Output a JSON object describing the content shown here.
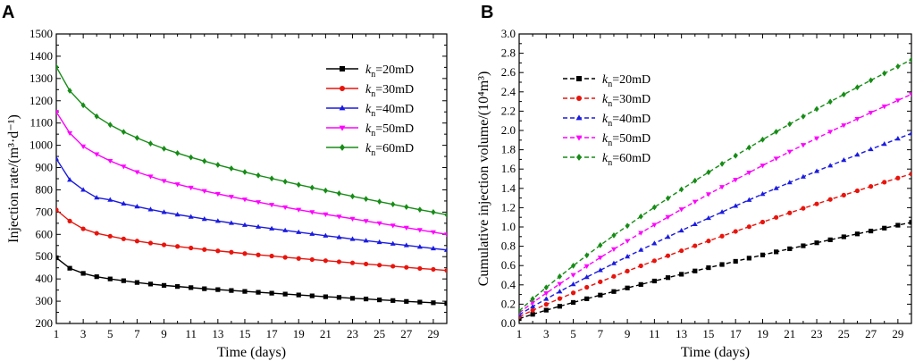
{
  "chart_data": [
    {
      "panel": "A",
      "type": "line",
      "x": [
        1,
        2,
        3,
        4,
        5,
        6,
        7,
        8,
        9,
        10,
        11,
        12,
        13,
        14,
        15,
        16,
        17,
        18,
        19,
        20,
        21,
        22,
        23,
        24,
        25,
        26,
        27,
        28,
        29,
        30
      ],
      "xlabel": "Time (days)",
      "ylabel": "Injection rate/(m³·d⁻¹)",
      "xlim": [
        1,
        30
      ],
      "ylim": [
        200,
        1500
      ],
      "xticks": [
        1,
        3,
        5,
        7,
        9,
        11,
        13,
        15,
        17,
        19,
        21,
        23,
        25,
        27,
        29
      ],
      "yticks": [
        200,
        300,
        400,
        500,
        600,
        700,
        800,
        900,
        1000,
        1100,
        1200,
        1300,
        1400,
        1500
      ],
      "legend_position": "top-right",
      "series": [
        {
          "name": "k",
          "sub": "n",
          "suffix": "=20mD",
          "color": "#000000",
          "marker": "square",
          "dashed": false,
          "values": [
            495,
            448,
            425,
            410,
            400,
            392,
            384,
            377,
            371,
            366,
            361,
            356,
            352,
            348,
            344,
            340,
            336,
            332,
            328,
            324,
            320,
            317,
            313,
            310,
            306,
            303,
            299,
            296,
            293,
            290
          ]
        },
        {
          "name": "k",
          "sub": "n",
          "suffix": "=30mD",
          "color": "#e8140c",
          "marker": "circle",
          "dashed": false,
          "values": [
            710,
            660,
            625,
            605,
            592,
            580,
            570,
            561,
            553,
            546,
            539,
            532,
            526,
            520,
            514,
            508,
            503,
            497,
            492,
            487,
            482,
            477,
            472,
            467,
            462,
            457,
            452,
            447,
            443,
            438
          ]
        },
        {
          "name": "k",
          "sub": "n",
          "suffix": "=40mD",
          "color": "#1b1be0",
          "marker": "triangle-up",
          "dashed": false,
          "values": [
            940,
            845,
            800,
            765,
            755,
            738,
            725,
            712,
            700,
            689,
            679,
            669,
            660,
            651,
            642,
            634,
            626,
            618,
            610,
            602,
            594,
            587,
            579,
            572,
            565,
            558,
            551,
            544,
            537,
            530
          ]
        },
        {
          "name": "k",
          "sub": "n",
          "suffix": "=50mD",
          "color": "#ff00ff",
          "marker": "triangle-down",
          "dashed": false,
          "values": [
            1150,
            1055,
            995,
            960,
            930,
            905,
            880,
            860,
            840,
            825,
            810,
            795,
            782,
            769,
            757,
            745,
            733,
            722,
            711,
            700,
            690,
            680,
            670,
            660,
            650,
            640,
            630,
            620,
            610,
            600
          ]
        },
        {
          "name": "k",
          "sub": "n",
          "suffix": "=60mD",
          "color": "#168c16",
          "marker": "diamond",
          "dashed": false,
          "values": [
            1352,
            1245,
            1180,
            1130,
            1092,
            1060,
            1033,
            1008,
            985,
            965,
            946,
            929,
            912,
            896,
            880,
            865,
            851,
            837,
            823,
            810,
            797,
            784,
            771,
            759,
            747,
            735,
            723,
            711,
            700,
            688
          ]
        }
      ]
    },
    {
      "panel": "B",
      "type": "line",
      "x": [
        1,
        2,
        3,
        4,
        5,
        6,
        7,
        8,
        9,
        10,
        11,
        12,
        13,
        14,
        15,
        16,
        17,
        18,
        19,
        20,
        21,
        22,
        23,
        24,
        25,
        26,
        27,
        28,
        29,
        30
      ],
      "xlabel": "Time (days)",
      "ylabel": "Cumulative injection volume/(10⁴m³)",
      "xlim": [
        1,
        30
      ],
      "ylim": [
        0.0,
        3.0
      ],
      "xticks": [
        1,
        3,
        5,
        7,
        9,
        11,
        13,
        15,
        17,
        19,
        21,
        23,
        25,
        27,
        29
      ],
      "yticks": [
        0.0,
        0.2,
        0.4,
        0.6,
        0.8,
        1.0,
        1.2,
        1.4,
        1.6,
        1.8,
        2.0,
        2.2,
        2.4,
        2.6,
        2.8,
        3.0
      ],
      "legend_position": "top-left",
      "series": [
        {
          "name": "k",
          "sub": "n",
          "suffix": "=20mD",
          "color": "#000000",
          "marker": "square",
          "dashed": true,
          "values": [
            0.05,
            0.095,
            0.138,
            0.178,
            0.218,
            0.256,
            0.294,
            0.331,
            0.368,
            0.404,
            0.44,
            0.475,
            0.51,
            0.544,
            0.578,
            0.611,
            0.644,
            0.677,
            0.71,
            0.742,
            0.774,
            0.805,
            0.836,
            0.867,
            0.898,
            0.928,
            0.958,
            0.988,
            1.018,
            1.048
          ]
        },
        {
          "name": "k",
          "sub": "n",
          "suffix": "=30mD",
          "color": "#e8140c",
          "marker": "circle",
          "dashed": true,
          "values": [
            0.07,
            0.136,
            0.198,
            0.258,
            0.317,
            0.375,
            0.432,
            0.488,
            0.543,
            0.597,
            0.65,
            0.702,
            0.754,
            0.805,
            0.855,
            0.905,
            0.954,
            1.003,
            1.051,
            1.099,
            1.146,
            1.193,
            1.239,
            1.285,
            1.33,
            1.375,
            1.42,
            1.464,
            1.507,
            1.55
          ]
        },
        {
          "name": "k",
          "sub": "n",
          "suffix": "=40mD",
          "color": "#1b1be0",
          "marker": "triangle-up",
          "dashed": true,
          "values": [
            0.09,
            0.175,
            0.254,
            0.331,
            0.406,
            0.48,
            0.552,
            0.623,
            0.693,
            0.762,
            0.83,
            0.897,
            0.963,
            1.028,
            1.092,
            1.155,
            1.218,
            1.28,
            1.341,
            1.401,
            1.461,
            1.52,
            1.578,
            1.636,
            1.693,
            1.749,
            1.805,
            1.86,
            1.915,
            1.97
          ]
        },
        {
          "name": "k",
          "sub": "n",
          "suffix": "=50mD",
          "color": "#ff00ff",
          "marker": "triangle-down",
          "dashed": true,
          "values": [
            0.11,
            0.215,
            0.314,
            0.41,
            0.503,
            0.594,
            0.683,
            0.77,
            0.855,
            0.939,
            1.022,
            1.103,
            1.183,
            1.262,
            1.339,
            1.415,
            1.49,
            1.564,
            1.637,
            1.709,
            1.78,
            1.85,
            1.919,
            1.987,
            2.054,
            2.12,
            2.185,
            2.249,
            2.312,
            2.375
          ]
        },
        {
          "name": "k",
          "sub": "n",
          "suffix": "=60mD",
          "color": "#168c16",
          "marker": "diamond",
          "dashed": true,
          "values": [
            0.13,
            0.255,
            0.373,
            0.487,
            0.598,
            0.706,
            0.811,
            0.913,
            1.012,
            1.109,
            1.204,
            1.297,
            1.389,
            1.479,
            1.567,
            1.654,
            1.739,
            1.823,
            1.905,
            1.986,
            2.066,
            2.145,
            2.222,
            2.298,
            2.373,
            2.447,
            2.52,
            2.592,
            2.663,
            2.733
          ]
        }
      ]
    }
  ]
}
